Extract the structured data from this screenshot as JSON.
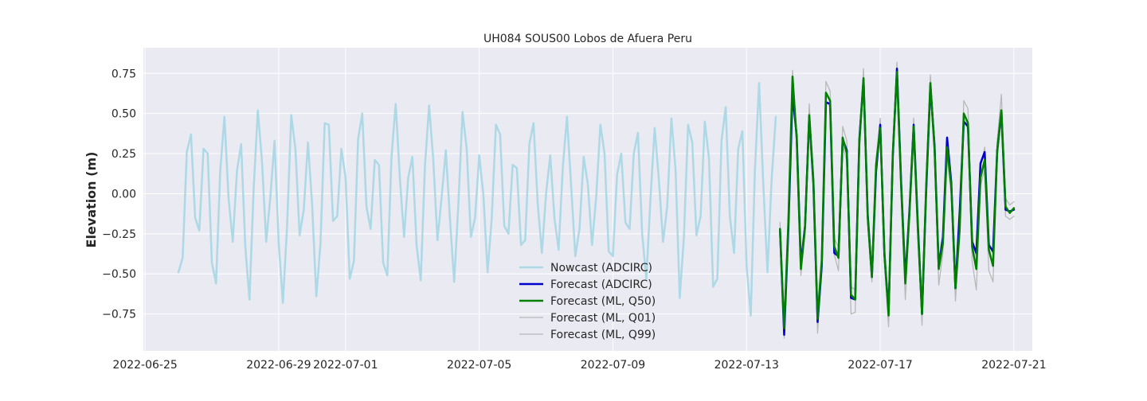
{
  "chart_data": {
    "type": "line",
    "title": "UH084 SOUS00 Lobos de Afuera Peru",
    "xlabel": "",
    "ylabel": "Elevation (m)",
    "xlim": [
      "2022-06-25",
      "2022-07-21"
    ],
    "ylim": [
      -0.98,
      0.91
    ],
    "grid": true,
    "legend_position": "lower-center",
    "x_ticks": [
      "2022-06-25",
      "2022-06-29",
      "2022-07-01",
      "2022-07-05",
      "2022-07-09",
      "2022-07-13",
      "2022-07-17",
      "2022-07-21"
    ],
    "y_ticks": [
      0.75,
      0.5,
      0.25,
      0.0,
      -0.25,
      -0.5,
      -0.75
    ],
    "y_tick_labels": [
      "0.75",
      "0.50",
      "0.25",
      "0.00",
      "−0.25",
      "−0.50",
      "−0.75"
    ],
    "series": [
      {
        "name": "Nowcast (ADCIRC)",
        "color": "#add8e6",
        "x": [
          "2022-06-26 00:00",
          "2022-06-26 03:00",
          "2022-06-26 06:00",
          "2022-06-26 09:00",
          "2022-06-26 12:00",
          "2022-06-26 15:00",
          "2022-06-26 18:00",
          "2022-06-26 21:00",
          "2022-06-27 00:00",
          "2022-06-27 03:00",
          "2022-06-27 06:00",
          "2022-06-27 09:00",
          "2022-06-27 12:00",
          "2022-06-27 15:00",
          "2022-06-27 18:00",
          "2022-06-27 21:00",
          "2022-06-28 00:00",
          "2022-06-28 03:00",
          "2022-06-28 06:00",
          "2022-06-28 09:00",
          "2022-06-28 12:00",
          "2022-06-28 15:00",
          "2022-06-28 18:00",
          "2022-06-28 21:00",
          "2022-06-29 00:00",
          "2022-06-29 03:00",
          "2022-06-29 06:00",
          "2022-06-29 09:00",
          "2022-06-29 12:00",
          "2022-06-29 15:00",
          "2022-06-29 18:00",
          "2022-06-29 21:00",
          "2022-06-30 00:00",
          "2022-06-30 03:00",
          "2022-06-30 06:00",
          "2022-06-30 09:00",
          "2022-06-30 12:00",
          "2022-06-30 15:00",
          "2022-06-30 18:00",
          "2022-06-30 21:00",
          "2022-07-01 00:00",
          "2022-07-01 03:00",
          "2022-07-01 06:00",
          "2022-07-01 09:00",
          "2022-07-01 12:00",
          "2022-07-01 15:00",
          "2022-07-01 18:00",
          "2022-07-01 21:00",
          "2022-07-02 00:00",
          "2022-07-02 03:00",
          "2022-07-02 06:00",
          "2022-07-02 09:00",
          "2022-07-02 12:00",
          "2022-07-02 15:00",
          "2022-07-02 18:00",
          "2022-07-02 21:00",
          "2022-07-03 00:00",
          "2022-07-03 03:00",
          "2022-07-03 06:00",
          "2022-07-03 09:00",
          "2022-07-03 12:00",
          "2022-07-03 15:00",
          "2022-07-03 18:00",
          "2022-07-03 21:00",
          "2022-07-04 00:00",
          "2022-07-04 03:00",
          "2022-07-04 06:00",
          "2022-07-04 09:00",
          "2022-07-04 12:00",
          "2022-07-04 15:00",
          "2022-07-04 18:00",
          "2022-07-04 21:00",
          "2022-07-05 00:00",
          "2022-07-05 03:00",
          "2022-07-05 06:00",
          "2022-07-05 09:00",
          "2022-07-05 12:00",
          "2022-07-05 15:00",
          "2022-07-05 18:00",
          "2022-07-05 21:00",
          "2022-07-06 00:00",
          "2022-07-06 03:00",
          "2022-07-06 06:00",
          "2022-07-06 09:00",
          "2022-07-06 12:00",
          "2022-07-06 15:00",
          "2022-07-06 18:00",
          "2022-07-06 21:00",
          "2022-07-07 00:00",
          "2022-07-07 03:00",
          "2022-07-07 06:00",
          "2022-07-07 09:00",
          "2022-07-07 12:00",
          "2022-07-07 15:00",
          "2022-07-07 18:00",
          "2022-07-07 21:00",
          "2022-07-08 00:00",
          "2022-07-08 03:00",
          "2022-07-08 06:00",
          "2022-07-08 09:00",
          "2022-07-08 12:00",
          "2022-07-08 15:00",
          "2022-07-08 18:00",
          "2022-07-08 21:00",
          "2022-07-09 00:00",
          "2022-07-09 03:00",
          "2022-07-09 06:00",
          "2022-07-09 09:00",
          "2022-07-09 12:00",
          "2022-07-09 15:00",
          "2022-07-09 18:00",
          "2022-07-09 21:00",
          "2022-07-10 00:00",
          "2022-07-10 03:00",
          "2022-07-10 06:00",
          "2022-07-10 09:00",
          "2022-07-10 12:00",
          "2022-07-10 15:00",
          "2022-07-10 18:00",
          "2022-07-10 21:00",
          "2022-07-11 00:00",
          "2022-07-11 03:00",
          "2022-07-11 06:00",
          "2022-07-11 09:00",
          "2022-07-11 12:00",
          "2022-07-11 15:00",
          "2022-07-11 18:00",
          "2022-07-11 21:00",
          "2022-07-12 00:00",
          "2022-07-12 03:00",
          "2022-07-12 06:00",
          "2022-07-12 09:00",
          "2022-07-12 12:00",
          "2022-07-12 15:00",
          "2022-07-12 18:00",
          "2022-07-12 21:00",
          "2022-07-13 00:00",
          "2022-07-13 03:00",
          "2022-07-13 06:00",
          "2022-07-13 09:00",
          "2022-07-13 12:00",
          "2022-07-13 15:00",
          "2022-07-13 18:00",
          "2022-07-13 21:00"
        ],
        "values": [
          -0.49,
          -0.4,
          0.26,
          0.37,
          -0.15,
          -0.23,
          0.28,
          0.25,
          -0.43,
          -0.56,
          0.14,
          0.48,
          -0.03,
          -0.3,
          0.14,
          0.31,
          -0.33,
          -0.66,
          0.03,
          0.52,
          0.2,
          -0.3,
          -0.02,
          0.33,
          -0.31,
          -0.68,
          -0.2,
          0.49,
          0.28,
          -0.26,
          -0.1,
          0.32,
          -0.07,
          -0.64,
          -0.31,
          0.44,
          0.43,
          -0.17,
          -0.14,
          0.28,
          0.1,
          -0.53,
          -0.42,
          0.34,
          0.5,
          -0.08,
          -0.22,
          0.21,
          0.18,
          -0.43,
          -0.51,
          0.23,
          0.56,
          0.1,
          -0.27,
          0.1,
          0.23,
          -0.32,
          -0.54,
          0.17,
          0.55,
          0.21,
          -0.29,
          -0.02,
          0.27,
          -0.16,
          -0.55,
          -0.07,
          0.51,
          0.28,
          -0.27,
          -0.15,
          0.24,
          -0.01,
          -0.49,
          -0.15,
          0.43,
          0.37,
          -0.2,
          -0.25,
          0.18,
          0.16,
          -0.32,
          -0.29,
          0.31,
          0.44,
          -0.06,
          -0.37,
          0.0,
          0.24,
          -0.15,
          -0.35,
          0.16,
          0.48,
          0.05,
          -0.39,
          -0.22,
          0.23,
          0.06,
          -0.32,
          -0.02,
          0.43,
          0.25,
          -0.36,
          -0.39,
          0.12,
          0.25,
          -0.18,
          -0.22,
          0.25,
          0.38,
          -0.25,
          -0.53,
          -0.03,
          0.41,
          0.09,
          -0.3,
          -0.08,
          0.47,
          0.15,
          -0.65,
          -0.27,
          0.43,
          0.32,
          -0.26,
          -0.14,
          0.45,
          0.22,
          -0.58,
          -0.53,
          0.33,
          0.54,
          -0.14,
          -0.37,
          0.28,
          0.39,
          -0.45,
          -0.76,
          0.15,
          0.69,
          0.06,
          -0.49,
          0.09,
          0.48
        ]
      },
      {
        "name": "Forecast (ADCIRC)",
        "color": "#0000cd",
        "x": [
          "2022-07-14 00:00",
          "2022-07-14 03:00",
          "2022-07-14 06:00",
          "2022-07-14 09:00",
          "2022-07-14 12:00",
          "2022-07-14 15:00",
          "2022-07-14 18:00",
          "2022-07-14 21:00",
          "2022-07-15 00:00",
          "2022-07-15 03:00",
          "2022-07-15 06:00",
          "2022-07-15 09:00",
          "2022-07-15 12:00",
          "2022-07-15 15:00",
          "2022-07-15 18:00",
          "2022-07-15 21:00",
          "2022-07-16 00:00",
          "2022-07-16 03:00",
          "2022-07-16 06:00",
          "2022-07-16 09:00",
          "2022-07-16 12:00",
          "2022-07-16 15:00",
          "2022-07-16 18:00",
          "2022-07-16 21:00",
          "2022-07-17 00:00",
          "2022-07-17 03:00",
          "2022-07-17 06:00",
          "2022-07-17 09:00",
          "2022-07-17 12:00",
          "2022-07-17 15:00",
          "2022-07-17 18:00",
          "2022-07-17 21:00",
          "2022-07-18 00:00",
          "2022-07-18 03:00",
          "2022-07-18 06:00",
          "2022-07-18 09:00",
          "2022-07-18 12:00",
          "2022-07-18 15:00",
          "2022-07-18 18:00",
          "2022-07-18 21:00",
          "2022-07-19 00:00",
          "2022-07-19 03:00",
          "2022-07-19 06:00",
          "2022-07-19 09:00",
          "2022-07-19 12:00",
          "2022-07-19 15:00",
          "2022-07-19 18:00",
          "2022-07-19 21:00",
          "2022-07-20 00:00",
          "2022-07-20 03:00",
          "2022-07-20 06:00",
          "2022-07-20 09:00",
          "2022-07-20 12:00",
          "2022-07-20 15:00",
          "2022-07-20 18:00",
          "2022-07-20 21:00",
          "2022-07-21 00:00"
        ],
        "values": [
          -0.22,
          -0.88,
          -0.22,
          0.62,
          0.36,
          -0.44,
          -0.2,
          0.48,
          0.06,
          -0.8,
          -0.45,
          0.57,
          0.56,
          -0.37,
          -0.39,
          0.34,
          0.27,
          -0.65,
          -0.66,
          0.34,
          0.71,
          -0.13,
          -0.52,
          0.14,
          0.43,
          -0.38,
          -0.74,
          0.23,
          0.78,
          0.07,
          -0.53,
          -0.1,
          0.43,
          -0.19,
          -0.75,
          0.02,
          0.67,
          0.3,
          -0.46,
          -0.27,
          0.35,
          0.07,
          -0.59,
          -0.12,
          0.45,
          0.42,
          -0.3,
          -0.37,
          0.19,
          0.26,
          -0.32,
          -0.36,
          0.27,
          0.51,
          -0.1,
          -0.11,
          -0.1
        ]
      },
      {
        "name": "Forecast (ML, Q50)",
        "color": "#008000",
        "x": [
          "2022-07-14 00:00",
          "2022-07-14 03:00",
          "2022-07-14 06:00",
          "2022-07-14 09:00",
          "2022-07-14 12:00",
          "2022-07-14 15:00",
          "2022-07-14 18:00",
          "2022-07-14 21:00",
          "2022-07-15 00:00",
          "2022-07-15 03:00",
          "2022-07-15 06:00",
          "2022-07-15 09:00",
          "2022-07-15 12:00",
          "2022-07-15 15:00",
          "2022-07-15 18:00",
          "2022-07-15 21:00",
          "2022-07-16 00:00",
          "2022-07-16 03:00",
          "2022-07-16 06:00",
          "2022-07-16 09:00",
          "2022-07-16 12:00",
          "2022-07-16 15:00",
          "2022-07-16 18:00",
          "2022-07-16 21:00",
          "2022-07-17 00:00",
          "2022-07-17 03:00",
          "2022-07-17 06:00",
          "2022-07-17 09:00",
          "2022-07-17 12:00",
          "2022-07-17 15:00",
          "2022-07-17 18:00",
          "2022-07-17 21:00",
          "2022-07-18 00:00",
          "2022-07-18 03:00",
          "2022-07-18 06:00",
          "2022-07-18 09:00",
          "2022-07-18 12:00",
          "2022-07-18 15:00",
          "2022-07-18 18:00",
          "2022-07-18 21:00",
          "2022-07-19 00:00",
          "2022-07-19 03:00",
          "2022-07-19 06:00",
          "2022-07-19 09:00",
          "2022-07-19 12:00",
          "2022-07-19 15:00",
          "2022-07-19 18:00",
          "2022-07-19 21:00",
          "2022-07-20 00:00",
          "2022-07-20 03:00",
          "2022-07-20 06:00",
          "2022-07-20 09:00",
          "2022-07-20 12:00",
          "2022-07-20 15:00",
          "2022-07-20 18:00",
          "2022-07-20 21:00",
          "2022-07-21 00:00"
        ],
        "values": [
          -0.22,
          -0.84,
          -0.18,
          0.73,
          0.34,
          -0.47,
          -0.21,
          0.49,
          0.08,
          -0.78,
          -0.42,
          0.63,
          0.58,
          -0.33,
          -0.4,
          0.35,
          0.25,
          -0.63,
          -0.66,
          0.32,
          0.72,
          -0.15,
          -0.52,
          0.18,
          0.41,
          -0.37,
          -0.76,
          0.25,
          0.76,
          0.05,
          -0.56,
          -0.12,
          0.42,
          -0.22,
          -0.75,
          0.05,
          0.69,
          0.28,
          -0.47,
          -0.31,
          0.29,
          0.05,
          -0.59,
          -0.23,
          0.5,
          0.44,
          -0.33,
          -0.47,
          0.1,
          0.21,
          -0.35,
          -0.45,
          0.27,
          0.52,
          -0.08,
          -0.12,
          -0.09
        ]
      },
      {
        "name": "Forecast (ML, Q01)",
        "color": "#b8b8b8",
        "x": [
          "2022-07-14 00:00",
          "2022-07-14 03:00",
          "2022-07-14 06:00",
          "2022-07-14 09:00",
          "2022-07-14 12:00",
          "2022-07-14 15:00",
          "2022-07-14 18:00",
          "2022-07-14 21:00",
          "2022-07-15 00:00",
          "2022-07-15 03:00",
          "2022-07-15 06:00",
          "2022-07-15 09:00",
          "2022-07-15 12:00",
          "2022-07-15 15:00",
          "2022-07-15 18:00",
          "2022-07-15 21:00",
          "2022-07-16 00:00",
          "2022-07-16 03:00",
          "2022-07-16 06:00",
          "2022-07-16 09:00",
          "2022-07-16 12:00",
          "2022-07-16 15:00",
          "2022-07-16 18:00",
          "2022-07-16 21:00",
          "2022-07-17 00:00",
          "2022-07-17 03:00",
          "2022-07-17 06:00",
          "2022-07-17 09:00",
          "2022-07-17 12:00",
          "2022-07-17 15:00",
          "2022-07-17 18:00",
          "2022-07-17 21:00",
          "2022-07-18 00:00",
          "2022-07-18 03:00",
          "2022-07-18 06:00",
          "2022-07-18 09:00",
          "2022-07-18 12:00",
          "2022-07-18 15:00",
          "2022-07-18 18:00",
          "2022-07-18 21:00",
          "2022-07-19 00:00",
          "2022-07-19 03:00",
          "2022-07-19 06:00",
          "2022-07-19 09:00",
          "2022-07-19 12:00",
          "2022-07-19 15:00",
          "2022-07-19 18:00",
          "2022-07-19 21:00",
          "2022-07-20 00:00",
          "2022-07-20 03:00",
          "2022-07-20 06:00",
          "2022-07-20 09:00",
          "2022-07-20 12:00",
          "2022-07-20 15:00",
          "2022-07-20 18:00",
          "2022-07-20 21:00",
          "2022-07-21 00:00"
        ],
        "values": [
          -0.24,
          -0.9,
          -0.22,
          0.68,
          0.3,
          -0.51,
          -0.25,
          0.45,
          0.04,
          -0.87,
          -0.47,
          0.58,
          0.54,
          -0.38,
          -0.48,
          0.3,
          0.2,
          -0.75,
          -0.74,
          0.27,
          0.68,
          -0.19,
          -0.55,
          0.13,
          0.38,
          -0.43,
          -0.83,
          0.2,
          0.72,
          0.0,
          -0.66,
          -0.15,
          0.37,
          -0.27,
          -0.82,
          0.0,
          0.63,
          0.23,
          -0.57,
          -0.37,
          0.23,
          -0.01,
          -0.67,
          -0.27,
          0.45,
          0.4,
          -0.42,
          -0.6,
          0.05,
          0.15,
          -0.48,
          -0.55,
          0.22,
          0.47,
          -0.14,
          -0.16,
          -0.14
        ]
      },
      {
        "name": "Forecast (ML, Q99)",
        "color": "#b8b8b8",
        "x": [
          "2022-07-14 00:00",
          "2022-07-14 03:00",
          "2022-07-14 06:00",
          "2022-07-14 09:00",
          "2022-07-14 12:00",
          "2022-07-14 15:00",
          "2022-07-14 18:00",
          "2022-07-14 21:00",
          "2022-07-15 00:00",
          "2022-07-15 03:00",
          "2022-07-15 06:00",
          "2022-07-15 09:00",
          "2022-07-15 12:00",
          "2022-07-15 15:00",
          "2022-07-15 18:00",
          "2022-07-15 21:00",
          "2022-07-16 00:00",
          "2022-07-16 03:00",
          "2022-07-16 06:00",
          "2022-07-16 09:00",
          "2022-07-16 12:00",
          "2022-07-16 15:00",
          "2022-07-16 18:00",
          "2022-07-16 21:00",
          "2022-07-17 00:00",
          "2022-07-17 03:00",
          "2022-07-17 06:00",
          "2022-07-17 09:00",
          "2022-07-17 12:00",
          "2022-07-17 15:00",
          "2022-07-17 18:00",
          "2022-07-17 21:00",
          "2022-07-18 00:00",
          "2022-07-18 03:00",
          "2022-07-18 06:00",
          "2022-07-18 09:00",
          "2022-07-18 12:00",
          "2022-07-18 15:00",
          "2022-07-18 18:00",
          "2022-07-18 21:00",
          "2022-07-19 00:00",
          "2022-07-19 03:00",
          "2022-07-19 06:00",
          "2022-07-19 09:00",
          "2022-07-19 12:00",
          "2022-07-19 15:00",
          "2022-07-19 18:00",
          "2022-07-19 21:00",
          "2022-07-20 00:00",
          "2022-07-20 03:00",
          "2022-07-20 06:00",
          "2022-07-20 09:00",
          "2022-07-20 12:00",
          "2022-07-20 15:00",
          "2022-07-20 18:00",
          "2022-07-20 21:00",
          "2022-07-21 00:00"
        ],
        "values": [
          -0.18,
          -0.8,
          -0.14,
          0.77,
          0.38,
          -0.43,
          -0.17,
          0.56,
          0.12,
          -0.72,
          -0.36,
          0.7,
          0.64,
          -0.28,
          -0.33,
          0.42,
          0.33,
          -0.58,
          -0.6,
          0.38,
          0.78,
          -0.09,
          -0.47,
          0.22,
          0.47,
          -0.31,
          -0.7,
          0.3,
          0.82,
          0.12,
          -0.5,
          -0.07,
          0.47,
          -0.17,
          -0.7,
          0.1,
          0.74,
          0.33,
          -0.41,
          -0.25,
          0.33,
          0.09,
          -0.53,
          -0.17,
          0.58,
          0.53,
          -0.27,
          -0.4,
          0.16,
          0.29,
          -0.3,
          -0.38,
          0.33,
          0.62,
          -0.03,
          -0.07,
          -0.05
        ]
      }
    ]
  }
}
